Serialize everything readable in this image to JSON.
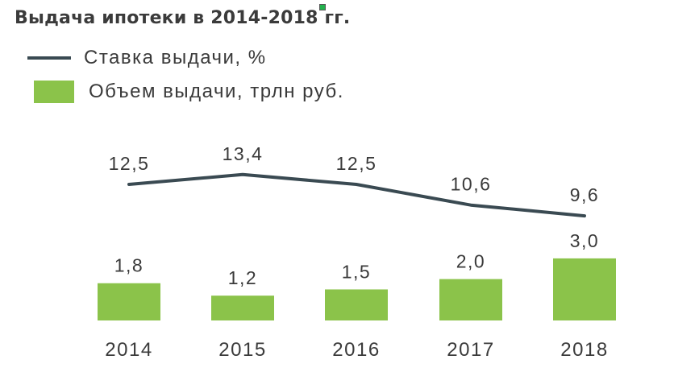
{
  "chart_data": {
    "type": "bar",
    "title": "Выдача ипотеки в 2014-2018 гг.",
    "categories": [
      "2014",
      "2015",
      "2016",
      "2017",
      "2018"
    ],
    "series": [
      {
        "name": "Ставка выдачи, %",
        "type": "line",
        "values": [
          12.5,
          13.4,
          12.5,
          10.6,
          9.6
        ],
        "labels": [
          "12,5",
          "13,4",
          "12,5",
          "10,6",
          "9,6"
        ]
      },
      {
        "name": "Объем выдачи, трлн руб.",
        "type": "bar",
        "values": [
          1.8,
          1.2,
          1.5,
          2.0,
          3.0
        ],
        "labels": [
          "1,8",
          "1,2",
          "1,5",
          "2,0",
          "3,0"
        ]
      }
    ],
    "legend": "top-left",
    "grid": false,
    "colors": {
      "line": "#3a4a52",
      "bar": "#8bc34a",
      "text": "#3a3a3a"
    }
  }
}
